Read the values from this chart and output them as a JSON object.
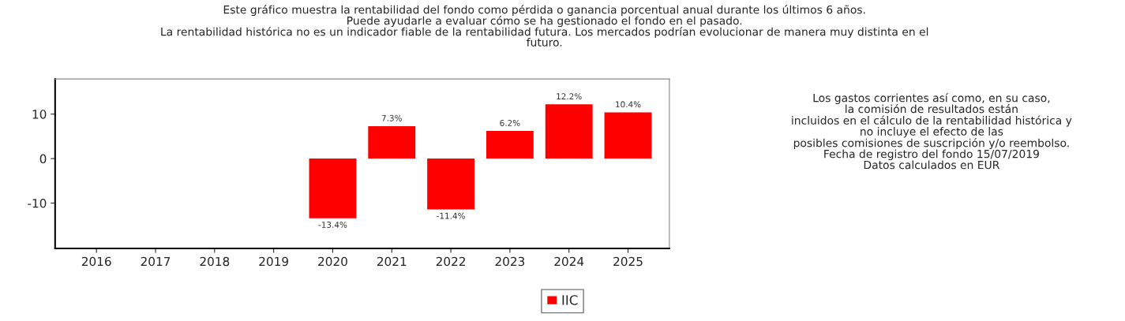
{
  "chart_data": {
    "type": "bar",
    "title": "Este gráfico muestra la rentabilidad del fondo como pérdida o ganancia porcentual anual durante los últimos 6 años.\nPuede ayudarle a evaluar cómo se ha gestionado el fondo en el pasado.\nLa rentabilidad histórica no es un indicador fiable de la rentabilidad futura. Los mercados podrían evolucionar de manera muy distinta en el\nfuturo.",
    "categories": [
      "2016",
      "2017",
      "2018",
      "2019",
      "2020",
      "2021",
      "2022",
      "2023",
      "2024",
      "2025"
    ],
    "series": [
      {
        "name": "IIC",
        "color": "#ff0000",
        "values": [
          null,
          null,
          null,
          null,
          -13.4,
          7.3,
          -11.4,
          6.2,
          12.2,
          10.4
        ],
        "value_labels": [
          null,
          null,
          null,
          null,
          "-13.4%",
          "7.3%",
          "-11.4%",
          "6.2%",
          "12.2%",
          "10.4%"
        ]
      }
    ],
    "ylim": [
      -20.2,
      17.9
    ],
    "yticks": [
      -10,
      0,
      10
    ],
    "grid": false,
    "legend": "bottom",
    "annotations": [
      "Los gastos corrientes así como, en su caso,\nla comisión de resultados están\nincluidos en el cálculo de la rentabilidad histórica y\nno incluye el efecto de las\nposibles comisiones de suscripción y/o reembolso.\nFecha de registro del fondo 15/07/2019\nDatos calculados en EUR"
    ]
  }
}
